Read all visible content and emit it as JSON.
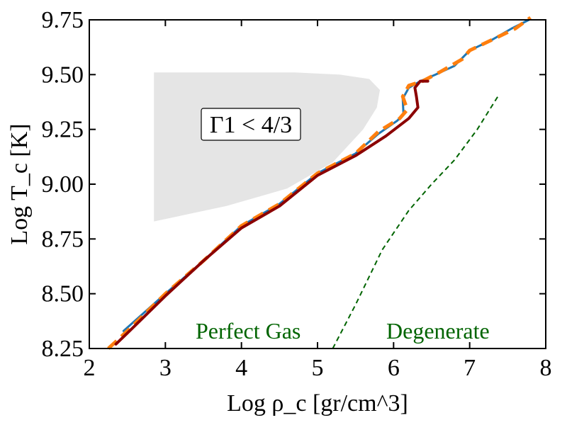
{
  "chart_data": {
    "type": "line",
    "title": "",
    "xlabel": "Log ρ_c [gr/cm^3]",
    "ylabel": "Log T_c [K]",
    "xlim": [
      2,
      8
    ],
    "ylim": [
      8.25,
      9.75
    ],
    "x_ticks": [
      "2",
      "3",
      "4",
      "5",
      "6",
      "7",
      "8"
    ],
    "y_ticks": [
      "8.25",
      "8.50",
      "8.75",
      "9.00",
      "9.25",
      "9.50",
      "9.75"
    ],
    "grid": false,
    "region": {
      "label": "Γ1 < 4/3",
      "color": "#e5e5e5",
      "polygon": [
        [
          2.85,
          9.51
        ],
        [
          4.7,
          9.51
        ],
        [
          5.3,
          9.5
        ],
        [
          5.68,
          9.48
        ],
        [
          5.82,
          9.43
        ],
        [
          5.78,
          9.35
        ],
        [
          5.6,
          9.25
        ],
        [
          5.2,
          9.1
        ],
        [
          4.6,
          8.98
        ],
        [
          3.8,
          8.9
        ],
        [
          2.85,
          8.83
        ]
      ]
    },
    "series": [
      {
        "color": "#1f77b4",
        "style": "solid",
        "values": [
          [
            2.45,
            8.33
          ],
          [
            3.0,
            8.5
          ],
          [
            3.5,
            8.65
          ],
          [
            4.0,
            8.81
          ],
          [
            4.5,
            8.91
          ],
          [
            5.0,
            9.05
          ],
          [
            5.5,
            9.14
          ],
          [
            5.8,
            9.23
          ],
          [
            6.05,
            9.29
          ],
          [
            6.13,
            9.32
          ],
          [
            6.12,
            9.39
          ],
          [
            6.2,
            9.44
          ],
          [
            6.35,
            9.47
          ],
          [
            6.55,
            9.5
          ],
          [
            6.8,
            9.54
          ],
          [
            7.0,
            9.61
          ],
          [
            7.3,
            9.66
          ],
          [
            7.55,
            9.71
          ],
          [
            7.78,
            9.75
          ]
        ]
      },
      {
        "color": "#ff7f0e",
        "style": "dashed",
        "values": [
          [
            2.25,
            8.25
          ],
          [
            2.5,
            8.33
          ],
          [
            3.0,
            8.5
          ],
          [
            3.5,
            8.65
          ],
          [
            4.0,
            8.81
          ],
          [
            4.5,
            8.91
          ],
          [
            5.0,
            9.05
          ],
          [
            5.5,
            9.14
          ],
          [
            5.8,
            9.24
          ],
          [
            6.08,
            9.3
          ],
          [
            6.18,
            9.34
          ],
          [
            6.12,
            9.4
          ],
          [
            6.2,
            9.45
          ],
          [
            6.38,
            9.47
          ],
          [
            6.6,
            9.51
          ],
          [
            6.9,
            9.57
          ],
          [
            7.0,
            9.61
          ],
          [
            7.3,
            9.66
          ],
          [
            7.6,
            9.71
          ],
          [
            7.8,
            9.76
          ]
        ]
      },
      {
        "color": "#8b0000",
        "style": "solid",
        "values": [
          [
            2.35,
            8.27
          ],
          [
            2.5,
            8.32
          ],
          [
            3.0,
            8.49
          ],
          [
            3.5,
            8.65
          ],
          [
            4.0,
            8.8
          ],
          [
            4.5,
            8.9
          ],
          [
            5.0,
            9.04
          ],
          [
            5.5,
            9.13
          ],
          [
            5.9,
            9.22
          ],
          [
            6.2,
            9.3
          ],
          [
            6.32,
            9.35
          ],
          [
            6.3,
            9.4
          ],
          [
            6.28,
            9.44
          ],
          [
            6.35,
            9.47
          ],
          [
            6.45,
            9.47
          ]
        ]
      },
      {
        "color": "#006400",
        "style": "dashed",
        "values": [
          [
            5.2,
            8.25
          ],
          [
            5.5,
            8.45
          ],
          [
            5.85,
            8.7
          ],
          [
            6.2,
            8.88
          ],
          [
            6.5,
            9.0
          ],
          [
            6.8,
            9.11
          ],
          [
            7.1,
            9.25
          ],
          [
            7.37,
            9.4
          ]
        ]
      }
    ],
    "annotations": [
      {
        "text": "Perfect Gas",
        "color": "#006400"
      },
      {
        "text": "Degenerate",
        "color": "#006400"
      }
    ]
  }
}
